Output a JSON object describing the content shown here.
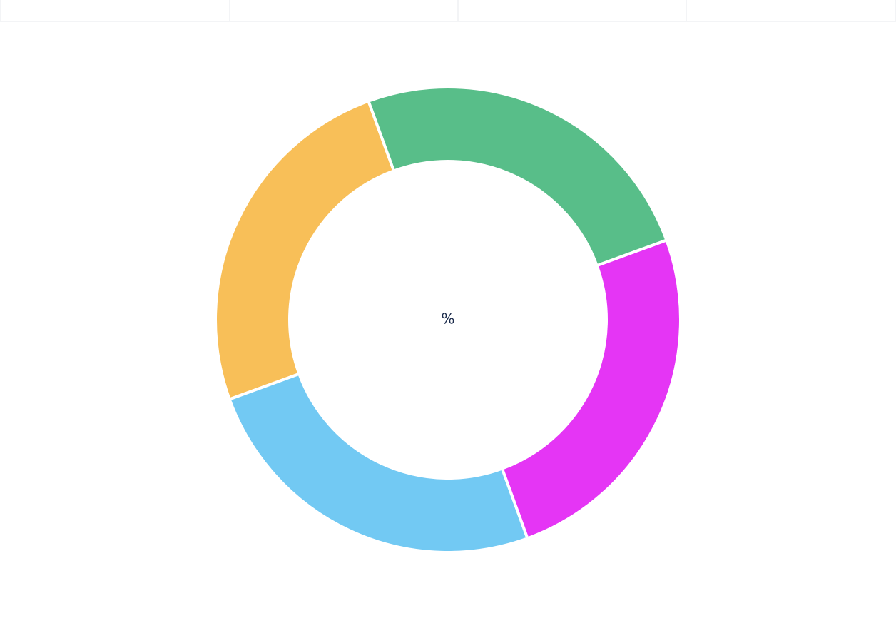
{
  "chart_data": {
    "type": "donut",
    "center_label": "%",
    "categories": [
      null,
      null,
      null,
      null
    ],
    "values": [
      25,
      25,
      25,
      25
    ],
    "colors": [
      "#58be89",
      "#e535f5",
      "#72c9f3",
      "#f8bf58"
    ]
  }
}
